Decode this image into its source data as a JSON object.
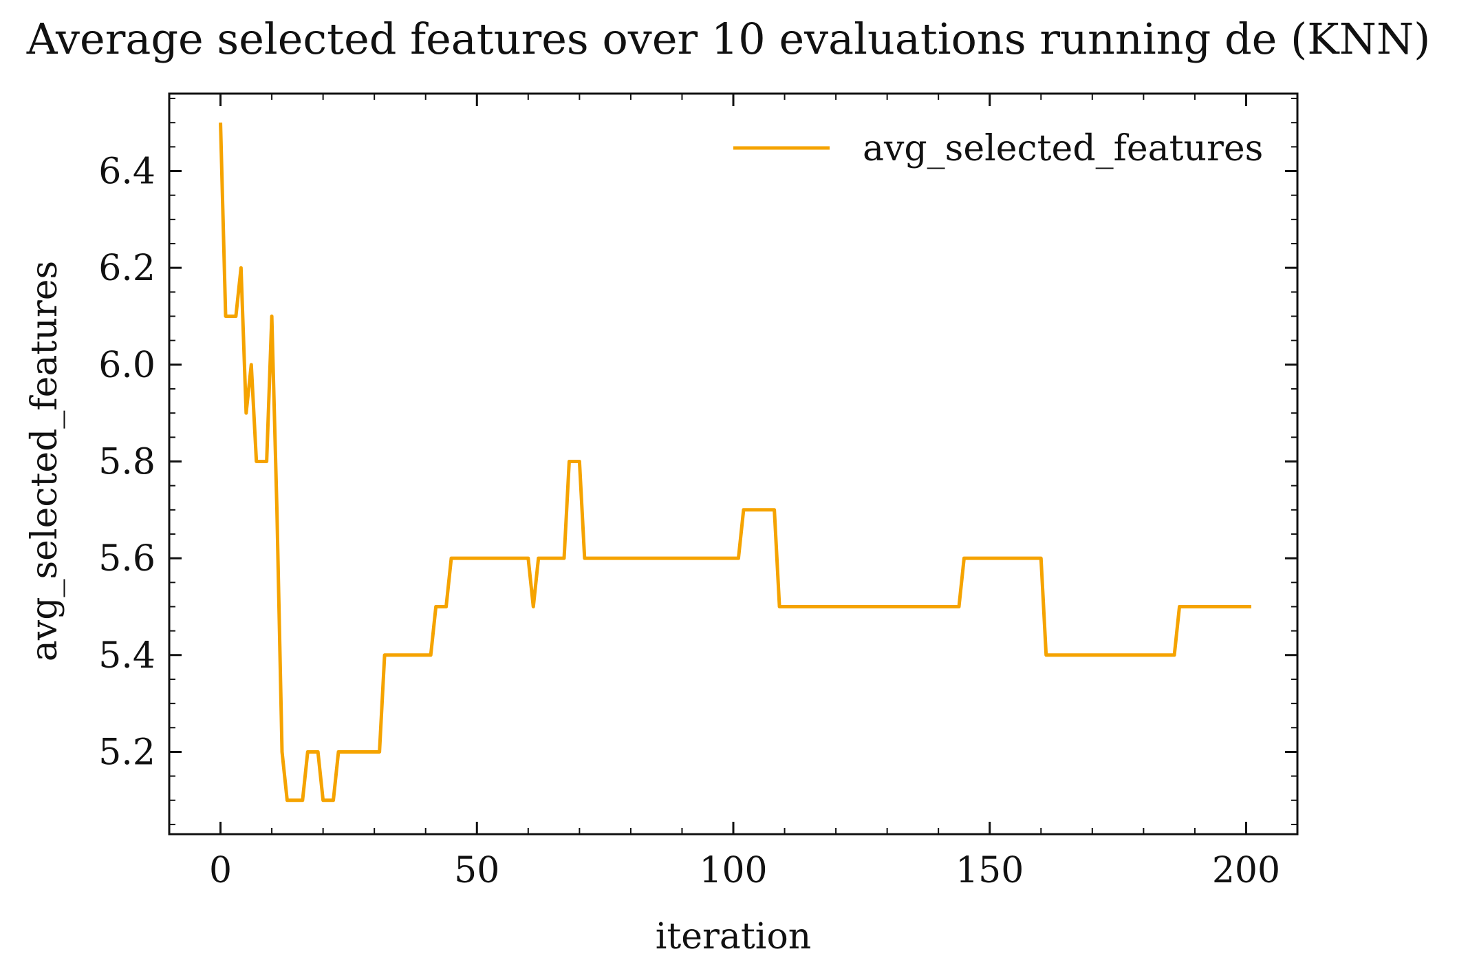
{
  "chart_data": {
    "type": "line",
    "title": "Average selected features over 10 evaluations running de (KNN)",
    "xlabel": "iteration",
    "ylabel": "avg_selected_features",
    "xlim": [
      -10,
      210
    ],
    "ylim": [
      5.03,
      6.56
    ],
    "x_ticks": [
      0,
      50,
      100,
      150,
      200
    ],
    "x_tick_labels": [
      "0",
      "50",
      "100",
      "150",
      "200"
    ],
    "y_ticks": [
      5.2,
      5.4,
      5.6,
      5.8,
      6.0,
      6.2,
      6.4
    ],
    "y_tick_labels": [
      "5.2",
      "5.4",
      "5.6",
      "5.8",
      "6.0",
      "6.2",
      "6.4"
    ],
    "grid": false,
    "legend_position": "top-right",
    "series": [
      {
        "name": "avg_selected_features",
        "color": "#f5a300",
        "x": [
          0,
          1,
          2,
          3,
          4,
          5,
          6,
          7,
          8,
          9,
          10,
          11,
          12,
          13,
          14,
          15,
          16,
          17,
          18,
          19,
          20,
          21,
          22,
          23,
          24,
          25,
          26,
          27,
          28,
          29,
          30,
          31,
          32,
          33,
          34,
          35,
          36,
          37,
          38,
          39,
          40,
          41,
          42,
          43,
          44,
          45,
          46,
          47,
          48,
          49,
          50,
          51,
          52,
          53,
          54,
          55,
          56,
          57,
          58,
          59,
          60,
          61,
          62,
          63,
          64,
          65,
          66,
          67,
          68,
          69,
          70,
          71,
          72,
          73,
          74,
          75,
          76,
          77,
          78,
          79,
          80,
          81,
          82,
          83,
          84,
          85,
          86,
          87,
          88,
          89,
          90,
          91,
          92,
          93,
          94,
          95,
          96,
          97,
          98,
          99,
          100,
          101,
          102,
          103,
          104,
          105,
          106,
          107,
          108,
          109,
          110,
          111,
          112,
          113,
          114,
          115,
          116,
          117,
          118,
          119,
          120,
          121,
          122,
          123,
          124,
          125,
          126,
          127,
          128,
          129,
          130,
          131,
          132,
          133,
          134,
          135,
          136,
          137,
          138,
          139,
          140,
          141,
          142,
          143,
          144,
          145,
          146,
          147,
          148,
          149,
          150,
          151,
          152,
          153,
          154,
          155,
          156,
          157,
          158,
          159,
          160,
          161,
          162,
          163,
          164,
          165,
          166,
          167,
          168,
          169,
          170,
          171,
          172,
          173,
          174,
          175,
          176,
          177,
          178,
          179,
          180,
          181,
          182,
          183,
          184,
          185,
          186,
          187,
          188,
          189,
          190,
          191,
          192,
          193,
          194,
          195,
          196,
          197,
          198,
          199,
          200,
          201
        ],
        "values": [
          6.5,
          6.1,
          6.1,
          6.1,
          6.2,
          5.9,
          6.0,
          5.8,
          5.8,
          5.8,
          6.1,
          5.7,
          5.2,
          5.1,
          5.1,
          5.1,
          5.1,
          5.2,
          5.2,
          5.2,
          5.1,
          5.1,
          5.1,
          5.2,
          5.2,
          5.2,
          5.2,
          5.2,
          5.2,
          5.2,
          5.2,
          5.2,
          5.4,
          5.4,
          5.4,
          5.4,
          5.4,
          5.4,
          5.4,
          5.4,
          5.4,
          5.4,
          5.5,
          5.5,
          5.5,
          5.6,
          5.6,
          5.6,
          5.6,
          5.6,
          5.6,
          5.6,
          5.6,
          5.6,
          5.6,
          5.6,
          5.6,
          5.6,
          5.6,
          5.6,
          5.6,
          5.5,
          5.6,
          5.6,
          5.6,
          5.6,
          5.6,
          5.6,
          5.8,
          5.8,
          5.8,
          5.6,
          5.6,
          5.6,
          5.6,
          5.6,
          5.6,
          5.6,
          5.6,
          5.6,
          5.6,
          5.6,
          5.6,
          5.6,
          5.6,
          5.6,
          5.6,
          5.6,
          5.6,
          5.6,
          5.6,
          5.6,
          5.6,
          5.6,
          5.6,
          5.6,
          5.6,
          5.6,
          5.6,
          5.6,
          5.6,
          5.6,
          5.7,
          5.7,
          5.7,
          5.7,
          5.7,
          5.7,
          5.7,
          5.5,
          5.5,
          5.5,
          5.5,
          5.5,
          5.5,
          5.5,
          5.5,
          5.5,
          5.5,
          5.5,
          5.5,
          5.5,
          5.5,
          5.5,
          5.5,
          5.5,
          5.5,
          5.5,
          5.5,
          5.5,
          5.5,
          5.5,
          5.5,
          5.5,
          5.5,
          5.5,
          5.5,
          5.5,
          5.5,
          5.5,
          5.5,
          5.5,
          5.5,
          5.5,
          5.5,
          5.6,
          5.6,
          5.6,
          5.6,
          5.6,
          5.6,
          5.6,
          5.6,
          5.6,
          5.6,
          5.6,
          5.6,
          5.6,
          5.6,
          5.6,
          5.6,
          5.4,
          5.4,
          5.4,
          5.4,
          5.4,
          5.4,
          5.4,
          5.4,
          5.4,
          5.4,
          5.4,
          5.4,
          5.4,
          5.4,
          5.4,
          5.4,
          5.4,
          5.4,
          5.4,
          5.4,
          5.4,
          5.4,
          5.4,
          5.4,
          5.4,
          5.4,
          5.5,
          5.5,
          5.5,
          5.5,
          5.5,
          5.5,
          5.5,
          5.5,
          5.5,
          5.5,
          5.5,
          5.5,
          5.5,
          5.5,
          5.5
        ]
      }
    ]
  }
}
